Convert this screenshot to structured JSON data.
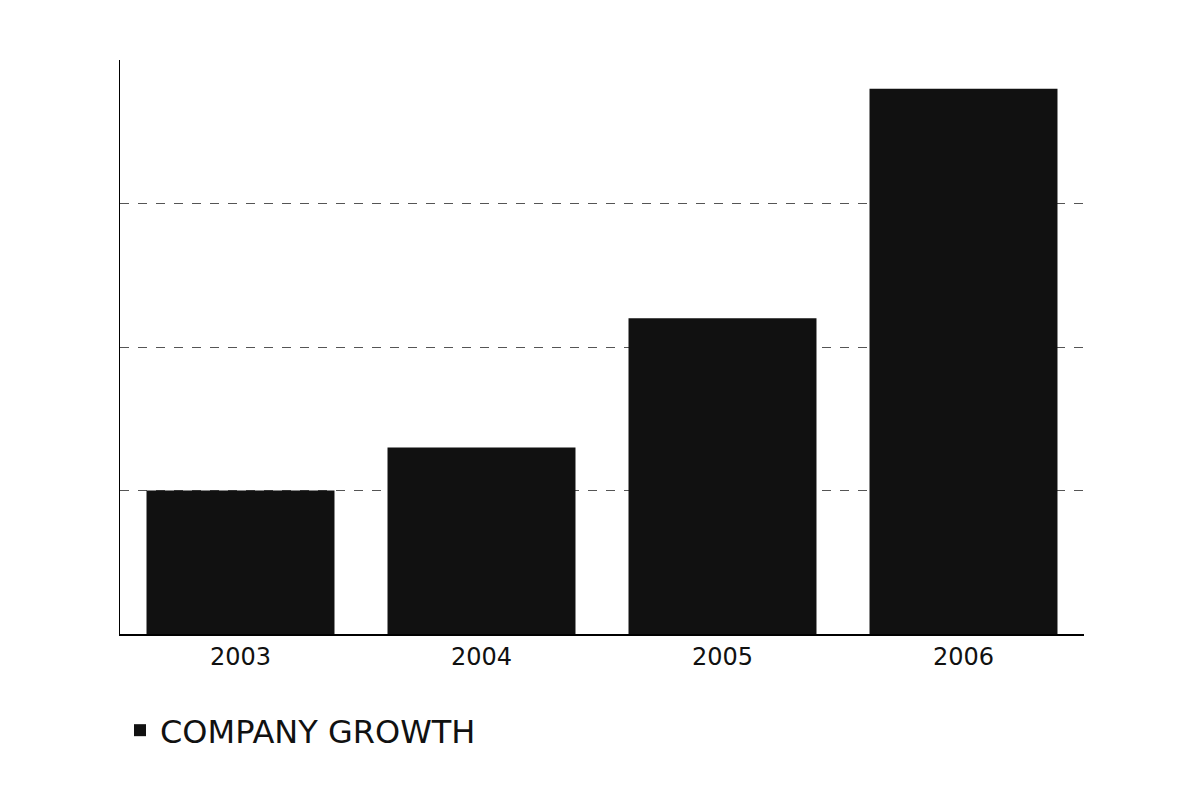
{
  "chart_data": {
    "type": "bar",
    "categories": [
      "2003",
      "2004",
      "2005",
      "2006"
    ],
    "series": [
      {
        "name": "COMPANY GROWTH",
        "color": "#111111",
        "values": [
          1.0,
          1.3,
          2.2,
          3.8
        ]
      }
    ],
    "ylim": [
      0,
      4
    ],
    "yticks": [
      0,
      1,
      2,
      3,
      4
    ],
    "grid": true,
    "legend": "bottom left",
    "tick_labels": "x"
  }
}
